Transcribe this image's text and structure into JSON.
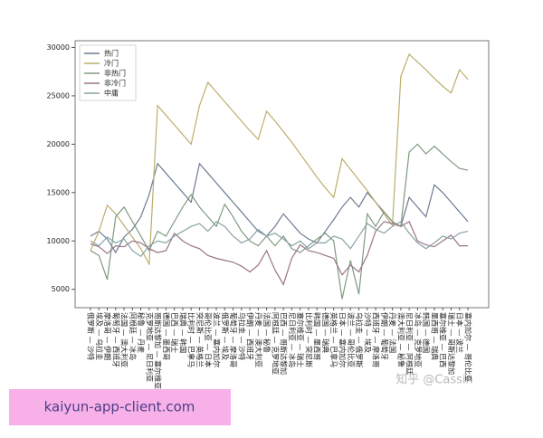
{
  "chart_data": {
    "type": "line",
    "categories": [
      "俄罗斯 — 沙特",
      "埃及 — 乌拉圭",
      "摩洛哥 — 伊朗",
      "葡萄牙 — 西班牙",
      "法国 — 澳大利亚",
      "阿根廷 — 冰岛",
      "秘鲁 — 丹麦",
      "克罗地亚 — 尼日利亚",
      "哥斯达黎加 — 塞尔维亚",
      "德国 — 墨西哥",
      "巴西 — 瑞士",
      "瑞典 — 韩国",
      "比利时 — 巴拿马",
      "突尼斯 — 英格兰",
      "哥伦比亚 — 日本",
      "波兰 — 塞内加尔",
      "俄罗斯 — 埃及",
      "葡萄牙 — 摩洛哥",
      "乌拉圭 — 沙特",
      "伊朗 — 西班牙",
      "丹麦 — 澳大利亚",
      "法国 — 秘鲁",
      "阿根廷 — 克罗地亚",
      "巴西 — 哥斯达黎加",
      "尼日利亚 — 冰岛",
      "塞尔维亚 — 瑞士",
      "比利时 — 突尼斯",
      "韩国 — 墨西哥",
      "德国 — 瑞典",
      "英格兰 — 巴拿马",
      "日本 — 塞内加尔",
      "波兰 — 哥伦比亚",
      "乌拉圭 — 俄罗斯",
      "沙特 — 埃及",
      "西班牙 — 摩洛哥",
      "伊朗 — 葡萄牙",
      "丹麦 — 法国",
      "澳大利亚 — 秘鲁",
      "尼日利亚 — 阿根廷",
      "冰岛 — 克罗地亚",
      "韩国 — 德国",
      "墨西哥 — 瑞典",
      "塞尔维亚 — 巴西",
      "瑞士 — 哥斯达黎加",
      "日本 — 波兰",
      "塞内加尔 — 哥伦比亚"
    ],
    "series": [
      {
        "name": "热门",
        "color": "#6d7b92",
        "values": [
          10500,
          11000,
          10200,
          8800,
          10400,
          11200,
          12500,
          14800,
          18000,
          17000,
          16000,
          15000,
          14000,
          18000,
          17000,
          16000,
          15000,
          14000,
          13000,
          12000,
          11000,
          10500,
          11500,
          12800,
          11800,
          10800,
          10200,
          9800,
          11000,
          12200,
          13500,
          14500,
          13500,
          15000,
          14000,
          13000,
          12000,
          11500,
          14500,
          13500,
          12500,
          15800,
          15000,
          14000,
          13000,
          12000
        ]
      },
      {
        "name": "冷门",
        "color": "#bcae6c",
        "values": [
          9000,
          11000,
          13700,
          12800,
          11600,
          10400,
          9200,
          7600,
          24000,
          23000,
          22000,
          21000,
          20000,
          24000,
          26400,
          25400,
          24400,
          23400,
          22400,
          21400,
          20500,
          23400,
          22400,
          21300,
          20200,
          19000,
          17800,
          16600,
          15500,
          14500,
          18500,
          17400,
          16300,
          15200,
          14000,
          12800,
          11600,
          27000,
          29300,
          28500,
          27700,
          26800,
          26000,
          25300,
          27700,
          26700
        ]
      },
      {
        "name": "非热门",
        "color": "#7f9a80",
        "values": [
          9000,
          8500,
          6000,
          12500,
          13500,
          12000,
          10500,
          9000,
          11000,
          10500,
          12000,
          13500,
          14800,
          13500,
          12500,
          11500,
          13800,
          12500,
          11000,
          10000,
          9500,
          10500,
          9500,
          10500,
          9200,
          8800,
          9500,
          10200,
          10800,
          10000,
          4000,
          8000,
          4500,
          12800,
          11500,
          13000,
          12000,
          11500,
          19200,
          20000,
          19000,
          19800,
          19000,
          18200,
          17500,
          17300
        ]
      },
      {
        "name": "非冷门",
        "color": "#9a7485",
        "values": [
          9700,
          9400,
          8700,
          9500,
          9400,
          10000,
          9800,
          9200,
          8800,
          9000,
          10800,
          10000,
          9500,
          9200,
          8500,
          8200,
          8000,
          7800,
          7400,
          6800,
          7500,
          9000,
          7000,
          5500,
          8200,
          9600,
          9000,
          8800,
          8500,
          8200,
          6500,
          7500,
          6800,
          8500,
          11000,
          12000,
          11800,
          11500,
          12000,
          10000,
          9600,
          9400,
          10000,
          10600,
          9500,
          9500
        ]
      },
      {
        "name": "中庸",
        "color": "#8aa3a3",
        "values": [
          10000,
          9500,
          10400,
          9800,
          10200,
          9000,
          8400,
          9500,
          10000,
          9800,
          10500,
          11000,
          11500,
          11800,
          11000,
          12000,
          11500,
          10500,
          9800,
          10200,
          11200,
          10500,
          10800,
          10200,
          9500,
          10000,
          9200,
          9800,
          9800,
          10500,
          10200,
          9200,
          10500,
          11800,
          11200,
          10800,
          11500,
          12000,
          10800,
          9800,
          9200,
          9800,
          10500,
          10200,
          10800,
          11000
        ]
      }
    ],
    "ylim": [
      3100,
      30700
    ],
    "yticks": [
      5000,
      10000,
      15000,
      20000,
      25000,
      30000
    ],
    "legend": "upper left",
    "grid": false
  },
  "watermark": "知乎 @Cassin",
  "banner": "kaiyun-app-client.com"
}
